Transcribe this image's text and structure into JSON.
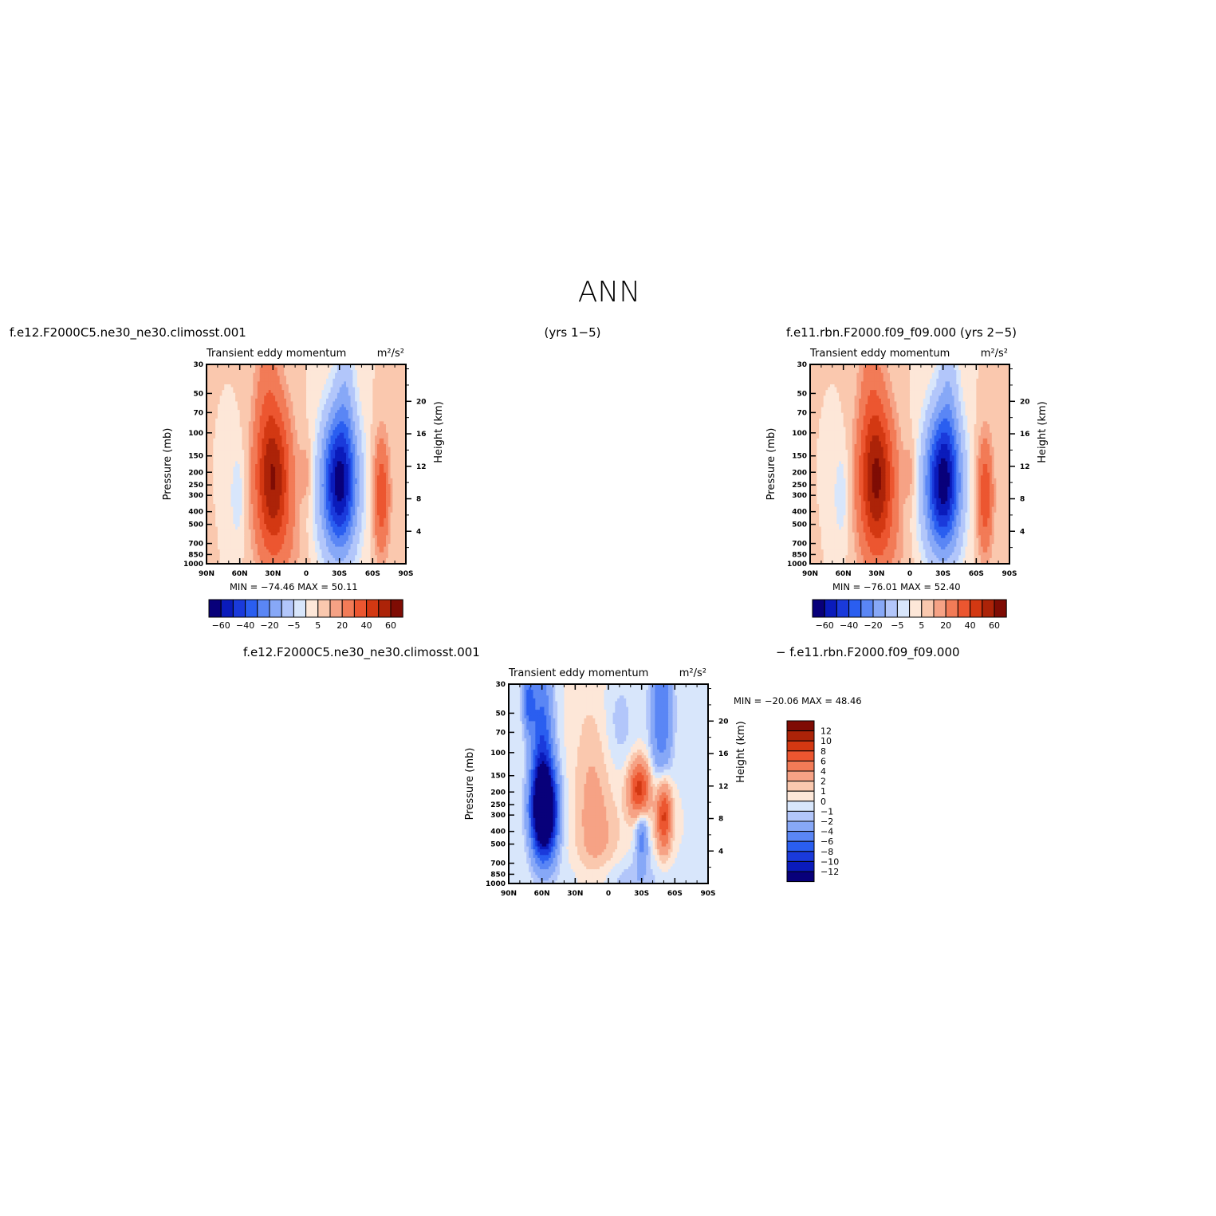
{
  "figure": {
    "title": "ANN",
    "left_case": "f.e12.F2000C5.ne30_ne30.climosst.001",
    "center_years": "(yrs 1−5)",
    "right_case": "f.e11.rbn.F2000.f09_f09.000  (yrs 2−5)",
    "diff_left_case": "f.e12.F2000C5.ne30_ne30.climosst.001",
    "diff_right_case": "−  f.e11.rbn.F2000.f09_f09.000"
  },
  "chart_data": [
    {
      "id": "panel1",
      "type": "heatmap",
      "title": "Transient eddy momentum",
      "units": "m²/s²",
      "xlabel": "",
      "ylabel": "Pressure (mb)",
      "ylabel_right": "Height (km)",
      "x_ticks": [
        "90N",
        "60N",
        "30N",
        "0",
        "30S",
        "60S",
        "90S"
      ],
      "y_ticks": [
        "30",
        "50",
        "70",
        "100",
        "150",
        "200",
        "250",
        "300",
        "400",
        "500",
        "700",
        "850",
        "1000"
      ],
      "y_right_ticks": [
        "4",
        "8",
        "12",
        "16",
        "20"
      ],
      "stats": {
        "min_label": "MIN =",
        "min": "−74.46",
        "max_label": "MAX =",
        "max": "50.11"
      },
      "colorbar_labels": [
        "−60",
        "−40",
        "−20",
        "−5",
        "5",
        "20",
        "40",
        "60"
      ],
      "features": [
        {
          "lat": 28,
          "p": 220,
          "value": 50.11
        },
        {
          "lat": -30,
          "p": 250,
          "value": -74.46
        },
        {
          "lat": -68,
          "p": 300,
          "value": 30
        },
        {
          "lat": 62,
          "p": 300,
          "value": -9
        },
        {
          "lat": 0,
          "p": 200,
          "value": 8
        }
      ]
    },
    {
      "id": "panel2",
      "type": "heatmap",
      "title": "Transient eddy momentum",
      "units": "m²/s²",
      "xlabel": "",
      "ylabel": "Pressure (mb)",
      "ylabel_right": "Height (km)",
      "x_ticks": [
        "90N",
        "60N",
        "30N",
        "0",
        "30S",
        "60S",
        "90S"
      ],
      "y_ticks": [
        "30",
        "50",
        "70",
        "100",
        "150",
        "200",
        "250",
        "300",
        "400",
        "500",
        "700",
        "850",
        "1000"
      ],
      "y_right_ticks": [
        "4",
        "8",
        "12",
        "16",
        "20"
      ],
      "stats": {
        "min_label": "MIN =",
        "min": "−76.01",
        "max_label": "MAX =",
        "max": "52.40"
      },
      "colorbar_labels": [
        "−60",
        "−40",
        "−20",
        "−5",
        "5",
        "20",
        "40",
        "60"
      ],
      "features": [
        {
          "lat": 30,
          "p": 220,
          "value": 52.4
        },
        {
          "lat": -32,
          "p": 240,
          "value": -76.01
        },
        {
          "lat": -68,
          "p": 300,
          "value": 28
        },
        {
          "lat": 0,
          "p": 200,
          "value": 8
        }
      ]
    },
    {
      "id": "panel3",
      "type": "heatmap",
      "title": "Transient eddy momentum",
      "units": "m²/s²",
      "xlabel": "",
      "ylabel": "Pressure (mb)",
      "ylabel_right": "Height (km)",
      "x_ticks": [
        "90N",
        "60N",
        "30N",
        "0",
        "30S",
        "60S",
        "90S"
      ],
      "y_ticks": [
        "30",
        "50",
        "70",
        "100",
        "150",
        "200",
        "250",
        "300",
        "400",
        "500",
        "700",
        "850",
        "1000"
      ],
      "y_right_ticks": [
        "4",
        "8",
        "12",
        "16",
        "20"
      ],
      "stats": {
        "min_label": "MIN =",
        "min": "−20.06",
        "max_label": "MAX =",
        "max": "48.46"
      },
      "colorbar_labels": [
        "12",
        "10",
        "8",
        "6",
        "4",
        "2",
        "1",
        "0",
        "−1",
        "−2",
        "−4",
        "−6",
        "−8",
        "−10",
        "−12"
      ],
      "features": [
        {
          "lat": 60,
          "p": 280,
          "value": -20.06
        },
        {
          "lat": -28,
          "p": 200,
          "value": 9
        },
        {
          "lat": -55,
          "p": 300,
          "value": 9
        },
        {
          "lat": -30,
          "p": 450,
          "value": -5
        },
        {
          "lat": -50,
          "p": 50,
          "value": -5
        },
        {
          "lat": 72,
          "p": 40,
          "value": -5
        }
      ]
    }
  ],
  "colors": {
    "diverging_16": [
      "#08007a",
      "#0a1bbb",
      "#1a3adb",
      "#2a5ef0",
      "#5a86f5",
      "#87a8f7",
      "#b2c6fa",
      "#d8e6fb",
      "#fde7d8",
      "#fac8ae",
      "#f6a285",
      "#f27b57",
      "#ec5630",
      "#d33812",
      "#ac2308",
      "#7f0c04"
    ],
    "diverging_16_diff": [
      "#08007a",
      "#0a1bbb",
      "#1a3adb",
      "#2a5ef0",
      "#5a86f5",
      "#87a8f7",
      "#b2c6fa",
      "#d8e6fb",
      "#fde7d8",
      "#fac8ae",
      "#f6a285",
      "#f27b57",
      "#ec5630",
      "#d33812",
      "#ac2308",
      "#7f0c04"
    ]
  }
}
